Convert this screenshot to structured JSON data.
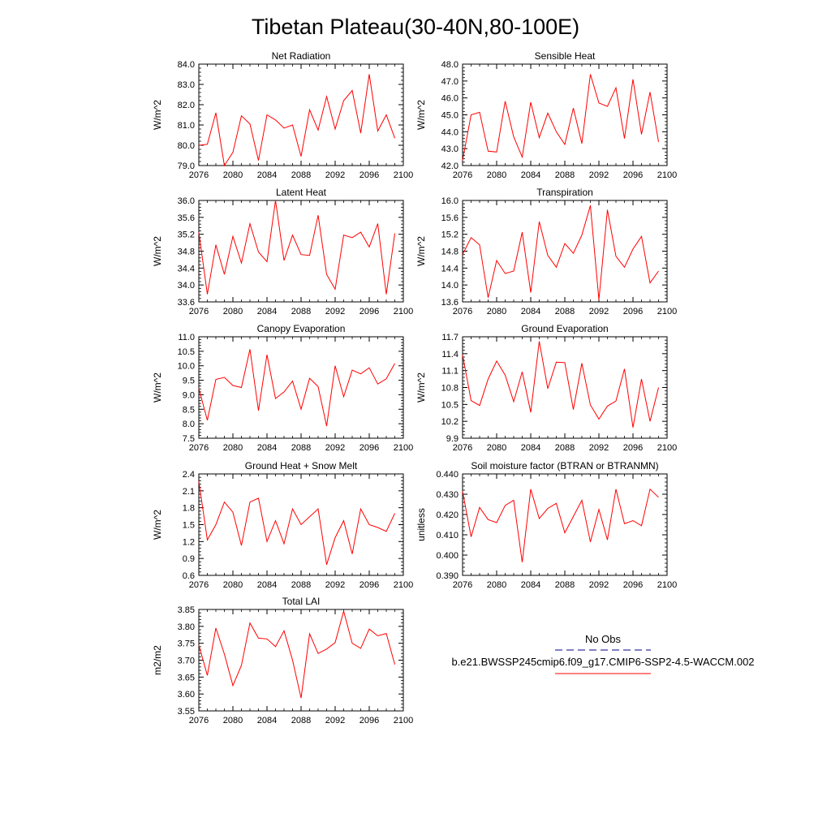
{
  "figure": {
    "title": "Tibetan Plateau(30-40N,80-100E)"
  },
  "legend": {
    "entries": [
      {
        "label": "No Obs",
        "color": "#00008b",
        "style": "dashed"
      },
      {
        "label": "b.e21.BWSSP245cmip6.f09_g17.CMIP6-SSP2-4.5-WACCM.002",
        "color": "#ff0000",
        "style": "solid"
      }
    ]
  },
  "chart_data": [
    {
      "type": "line",
      "title": "Net Radiation",
      "ylabel": "W/m^2",
      "xlim": [
        2076,
        2100
      ],
      "xticks": [
        2076,
        2080,
        2084,
        2088,
        2092,
        2096,
        2100
      ],
      "ylim": [
        79.0,
        84.0
      ],
      "yticks": [
        79.0,
        80.0,
        81.0,
        82.0,
        83.0,
        84.0
      ],
      "ytick_labels": [
        "79.0",
        "80.0",
        "81.0",
        "82.0",
        "83.0",
        "84.0"
      ],
      "series": [
        {
          "color": "#ff0000",
          "x": [
            2076,
            2077,
            2078,
            2079,
            2080,
            2081,
            2082,
            2083,
            2084,
            2085,
            2086,
            2087,
            2088,
            2089,
            2090,
            2091,
            2092,
            2093,
            2094,
            2095,
            2096,
            2097,
            2098,
            2099
          ],
          "values": [
            80.0,
            80.05,
            81.6,
            79.0,
            79.65,
            81.45,
            81.05,
            79.25,
            81.5,
            81.25,
            80.85,
            81.0,
            79.45,
            81.75,
            80.75,
            82.4,
            80.8,
            82.2,
            82.7,
            80.6,
            83.5,
            80.7,
            81.5,
            80.35
          ]
        }
      ]
    },
    {
      "type": "line",
      "title": "Sensible Heat",
      "ylabel": "W/m^2",
      "xlim": [
        2076,
        2100
      ],
      "xticks": [
        2076,
        2080,
        2084,
        2088,
        2092,
        2096,
        2100
      ],
      "ylim": [
        42.0,
        48.0
      ],
      "yticks": [
        42.0,
        43.0,
        44.0,
        45.0,
        46.0,
        47.0,
        48.0
      ],
      "ytick_labels": [
        "42.0",
        "43.0",
        "44.0",
        "45.0",
        "46.0",
        "47.0",
        "48.0"
      ],
      "series": [
        {
          "color": "#ff0000",
          "x": [
            2076,
            2077,
            2078,
            2079,
            2080,
            2081,
            2082,
            2083,
            2084,
            2085,
            2086,
            2087,
            2088,
            2089,
            2090,
            2091,
            2092,
            2093,
            2094,
            2095,
            2096,
            2097,
            2098,
            2099
          ],
          "values": [
            42.3,
            45.0,
            45.15,
            42.85,
            42.8,
            45.8,
            43.7,
            42.5,
            45.75,
            43.65,
            45.1,
            44.0,
            43.25,
            45.4,
            43.3,
            47.4,
            45.7,
            45.5,
            46.6,
            43.6,
            47.1,
            43.85,
            46.35,
            43.4
          ]
        }
      ]
    },
    {
      "type": "line",
      "title": "Latent Heat",
      "ylabel": "W/m^2",
      "xlim": [
        2076,
        2100
      ],
      "xticks": [
        2076,
        2080,
        2084,
        2088,
        2092,
        2096,
        2100
      ],
      "ylim": [
        33.6,
        36.0
      ],
      "yticks": [
        33.6,
        34.0,
        34.4,
        34.8,
        35.2,
        35.6,
        36.0
      ],
      "ytick_labels": [
        "33.6",
        "34.0",
        "34.4",
        "34.8",
        "35.2",
        "35.6",
        "36.0"
      ],
      "series": [
        {
          "color": "#ff0000",
          "x": [
            2076,
            2077,
            2078,
            2079,
            2080,
            2081,
            2082,
            2083,
            2084,
            2085,
            2086,
            2087,
            2088,
            2089,
            2090,
            2091,
            2092,
            2093,
            2094,
            2095,
            2096,
            2097,
            2098,
            2099
          ],
          "values": [
            35.25,
            33.78,
            34.95,
            34.25,
            35.15,
            34.52,
            35.45,
            34.78,
            34.55,
            36.0,
            34.58,
            35.18,
            34.72,
            34.7,
            35.65,
            34.25,
            33.9,
            35.18,
            35.12,
            35.25,
            34.9,
            35.45,
            33.78,
            35.22
          ]
        }
      ]
    },
    {
      "type": "line",
      "title": "Transpiration",
      "ylabel": "W/m^2",
      "xlim": [
        2076,
        2100
      ],
      "xticks": [
        2076,
        2080,
        2084,
        2088,
        2092,
        2096,
        2100
      ],
      "ylim": [
        13.6,
        16.0
      ],
      "yticks": [
        13.6,
        14.0,
        14.4,
        14.8,
        15.2,
        15.6,
        16.0
      ],
      "ytick_labels": [
        "13.6",
        "14.0",
        "14.4",
        "14.8",
        "15.2",
        "15.6",
        "16.0"
      ],
      "series": [
        {
          "color": "#ff0000",
          "x": [
            2076,
            2077,
            2078,
            2079,
            2080,
            2081,
            2082,
            2083,
            2084,
            2085,
            2086,
            2087,
            2088,
            2089,
            2090,
            2091,
            2092,
            2093,
            2094,
            2095,
            2096,
            2097,
            2098,
            2099
          ],
          "values": [
            14.72,
            15.12,
            14.95,
            13.7,
            14.58,
            14.27,
            14.33,
            15.25,
            13.82,
            15.5,
            14.7,
            14.42,
            14.98,
            14.75,
            15.18,
            15.88,
            13.65,
            15.78,
            14.68,
            14.42,
            14.85,
            15.15,
            14.05,
            14.33
          ]
        }
      ]
    },
    {
      "type": "line",
      "title": "Canopy Evaporation",
      "ylabel": "W/m^2",
      "xlim": [
        2076,
        2100
      ],
      "xticks": [
        2076,
        2080,
        2084,
        2088,
        2092,
        2096,
        2100
      ],
      "ylim": [
        7.5,
        11.0
      ],
      "yticks": [
        7.5,
        8.0,
        8.5,
        9.0,
        9.5,
        10.0,
        10.5,
        11.0
      ],
      "ytick_labels": [
        "7.5",
        "8.0",
        "8.5",
        "9.0",
        "9.5",
        "10.0",
        "10.5",
        "11.0"
      ],
      "series": [
        {
          "color": "#ff0000",
          "x": [
            2076,
            2077,
            2078,
            2079,
            2080,
            2081,
            2082,
            2083,
            2084,
            2085,
            2086,
            2087,
            2088,
            2089,
            2090,
            2091,
            2092,
            2093,
            2094,
            2095,
            2096,
            2097,
            2098,
            2099
          ],
          "values": [
            9.22,
            8.12,
            9.53,
            9.6,
            9.32,
            9.25,
            10.57,
            8.45,
            10.38,
            8.87,
            9.1,
            9.47,
            8.5,
            9.57,
            9.28,
            7.92,
            10.0,
            8.93,
            9.85,
            9.72,
            9.93,
            9.37,
            9.55,
            10.08
          ]
        }
      ]
    },
    {
      "type": "line",
      "title": "Ground Evaporation",
      "ylabel": "W/m^2",
      "xlim": [
        2076,
        2100
      ],
      "xticks": [
        2076,
        2080,
        2084,
        2088,
        2092,
        2096,
        2100
      ],
      "ylim": [
        9.9,
        11.7
      ],
      "yticks": [
        9.9,
        10.2,
        10.5,
        10.8,
        11.1,
        11.4,
        11.7
      ],
      "ytick_labels": [
        "9.9",
        "10.2",
        "10.5",
        "10.8",
        "11.1",
        "11.4",
        "11.7"
      ],
      "series": [
        {
          "color": "#ff0000",
          "x": [
            2076,
            2077,
            2078,
            2079,
            2080,
            2081,
            2082,
            2083,
            2084,
            2085,
            2086,
            2087,
            2088,
            2089,
            2090,
            2091,
            2092,
            2093,
            2094,
            2095,
            2096,
            2097,
            2098,
            2099
          ],
          "values": [
            11.38,
            10.57,
            10.48,
            10.95,
            11.27,
            11.02,
            10.55,
            11.08,
            10.36,
            11.62,
            10.78,
            11.25,
            11.24,
            10.41,
            11.23,
            10.49,
            10.24,
            10.47,
            10.56,
            11.13,
            10.09,
            10.95,
            10.2,
            10.8
          ]
        }
      ]
    },
    {
      "type": "line",
      "title": "Ground Heat + Snow Melt",
      "ylabel": "W/m^2",
      "xlim": [
        2076,
        2100
      ],
      "xticks": [
        2076,
        2080,
        2084,
        2088,
        2092,
        2096,
        2100
      ],
      "ylim": [
        0.6,
        2.4
      ],
      "yticks": [
        0.6,
        0.9,
        1.2,
        1.5,
        1.8,
        2.1,
        2.4
      ],
      "ytick_labels": [
        "0.6",
        "0.9",
        "1.2",
        "1.5",
        "1.8",
        "2.1",
        "2.4"
      ],
      "series": [
        {
          "color": "#ff0000",
          "x": [
            2076,
            2077,
            2078,
            2079,
            2080,
            2081,
            2082,
            2083,
            2084,
            2085,
            2086,
            2087,
            2088,
            2089,
            2090,
            2091,
            2092,
            2093,
            2094,
            2095,
            2096,
            2097,
            2098,
            2099
          ],
          "values": [
            2.27,
            1.23,
            1.5,
            1.9,
            1.72,
            1.13,
            1.9,
            1.97,
            1.2,
            1.57,
            1.16,
            1.78,
            1.5,
            1.64,
            1.78,
            0.79,
            1.27,
            1.57,
            0.98,
            1.78,
            1.5,
            1.45,
            1.38,
            1.7
          ]
        }
      ]
    },
    {
      "type": "line",
      "title": "Soil moisture factor (BTRAN or BTRANMN)",
      "ylabel": "unitless",
      "xlim": [
        2076,
        2100
      ],
      "xticks": [
        2076,
        2080,
        2084,
        2088,
        2092,
        2096,
        2100
      ],
      "ylim": [
        0.39,
        0.44
      ],
      "yticks": [
        0.39,
        0.4,
        0.41,
        0.42,
        0.43,
        0.44
      ],
      "ytick_labels": [
        "0.390",
        "0.400",
        "0.410",
        "0.420",
        "0.430",
        "0.440"
      ],
      "series": [
        {
          "color": "#ff0000",
          "x": [
            2076,
            2077,
            2078,
            2079,
            2080,
            2081,
            2082,
            2083,
            2084,
            2085,
            2086,
            2087,
            2088,
            2089,
            2090,
            2091,
            2092,
            2093,
            2094,
            2095,
            2096,
            2097,
            2098,
            2099
          ],
          "values": [
            0.4315,
            0.409,
            0.4235,
            0.4175,
            0.416,
            0.4245,
            0.427,
            0.3965,
            0.4325,
            0.418,
            0.423,
            0.4255,
            0.411,
            0.419,
            0.427,
            0.4065,
            0.4225,
            0.4075,
            0.4325,
            0.4155,
            0.417,
            0.4145,
            0.4325,
            0.4285
          ]
        }
      ]
    },
    {
      "type": "line",
      "title": "Total LAI",
      "ylabel": "m2/m2",
      "xlim": [
        2076,
        2100
      ],
      "xticks": [
        2076,
        2080,
        2084,
        2088,
        2092,
        2096,
        2100
      ],
      "ylim": [
        3.55,
        3.85
      ],
      "yticks": [
        3.55,
        3.6,
        3.65,
        3.7,
        3.75,
        3.8,
        3.85
      ],
      "ytick_labels": [
        "3.55",
        "3.60",
        "3.65",
        "3.70",
        "3.75",
        "3.80",
        "3.85"
      ],
      "series": [
        {
          "color": "#ff0000",
          "x": [
            2076,
            2077,
            2078,
            2079,
            2080,
            2081,
            2082,
            2083,
            2084,
            2085,
            2086,
            2087,
            2088,
            2089,
            2090,
            2091,
            2092,
            2093,
            2094,
            2095,
            2096,
            2097,
            2098,
            2099
          ],
          "values": [
            3.745,
            3.655,
            3.795,
            3.718,
            3.625,
            3.685,
            3.81,
            3.765,
            3.763,
            3.74,
            3.787,
            3.7,
            3.588,
            3.778,
            3.72,
            3.733,
            3.752,
            3.845,
            3.75,
            3.735,
            3.792,
            3.772,
            3.779,
            3.687
          ]
        }
      ]
    }
  ]
}
